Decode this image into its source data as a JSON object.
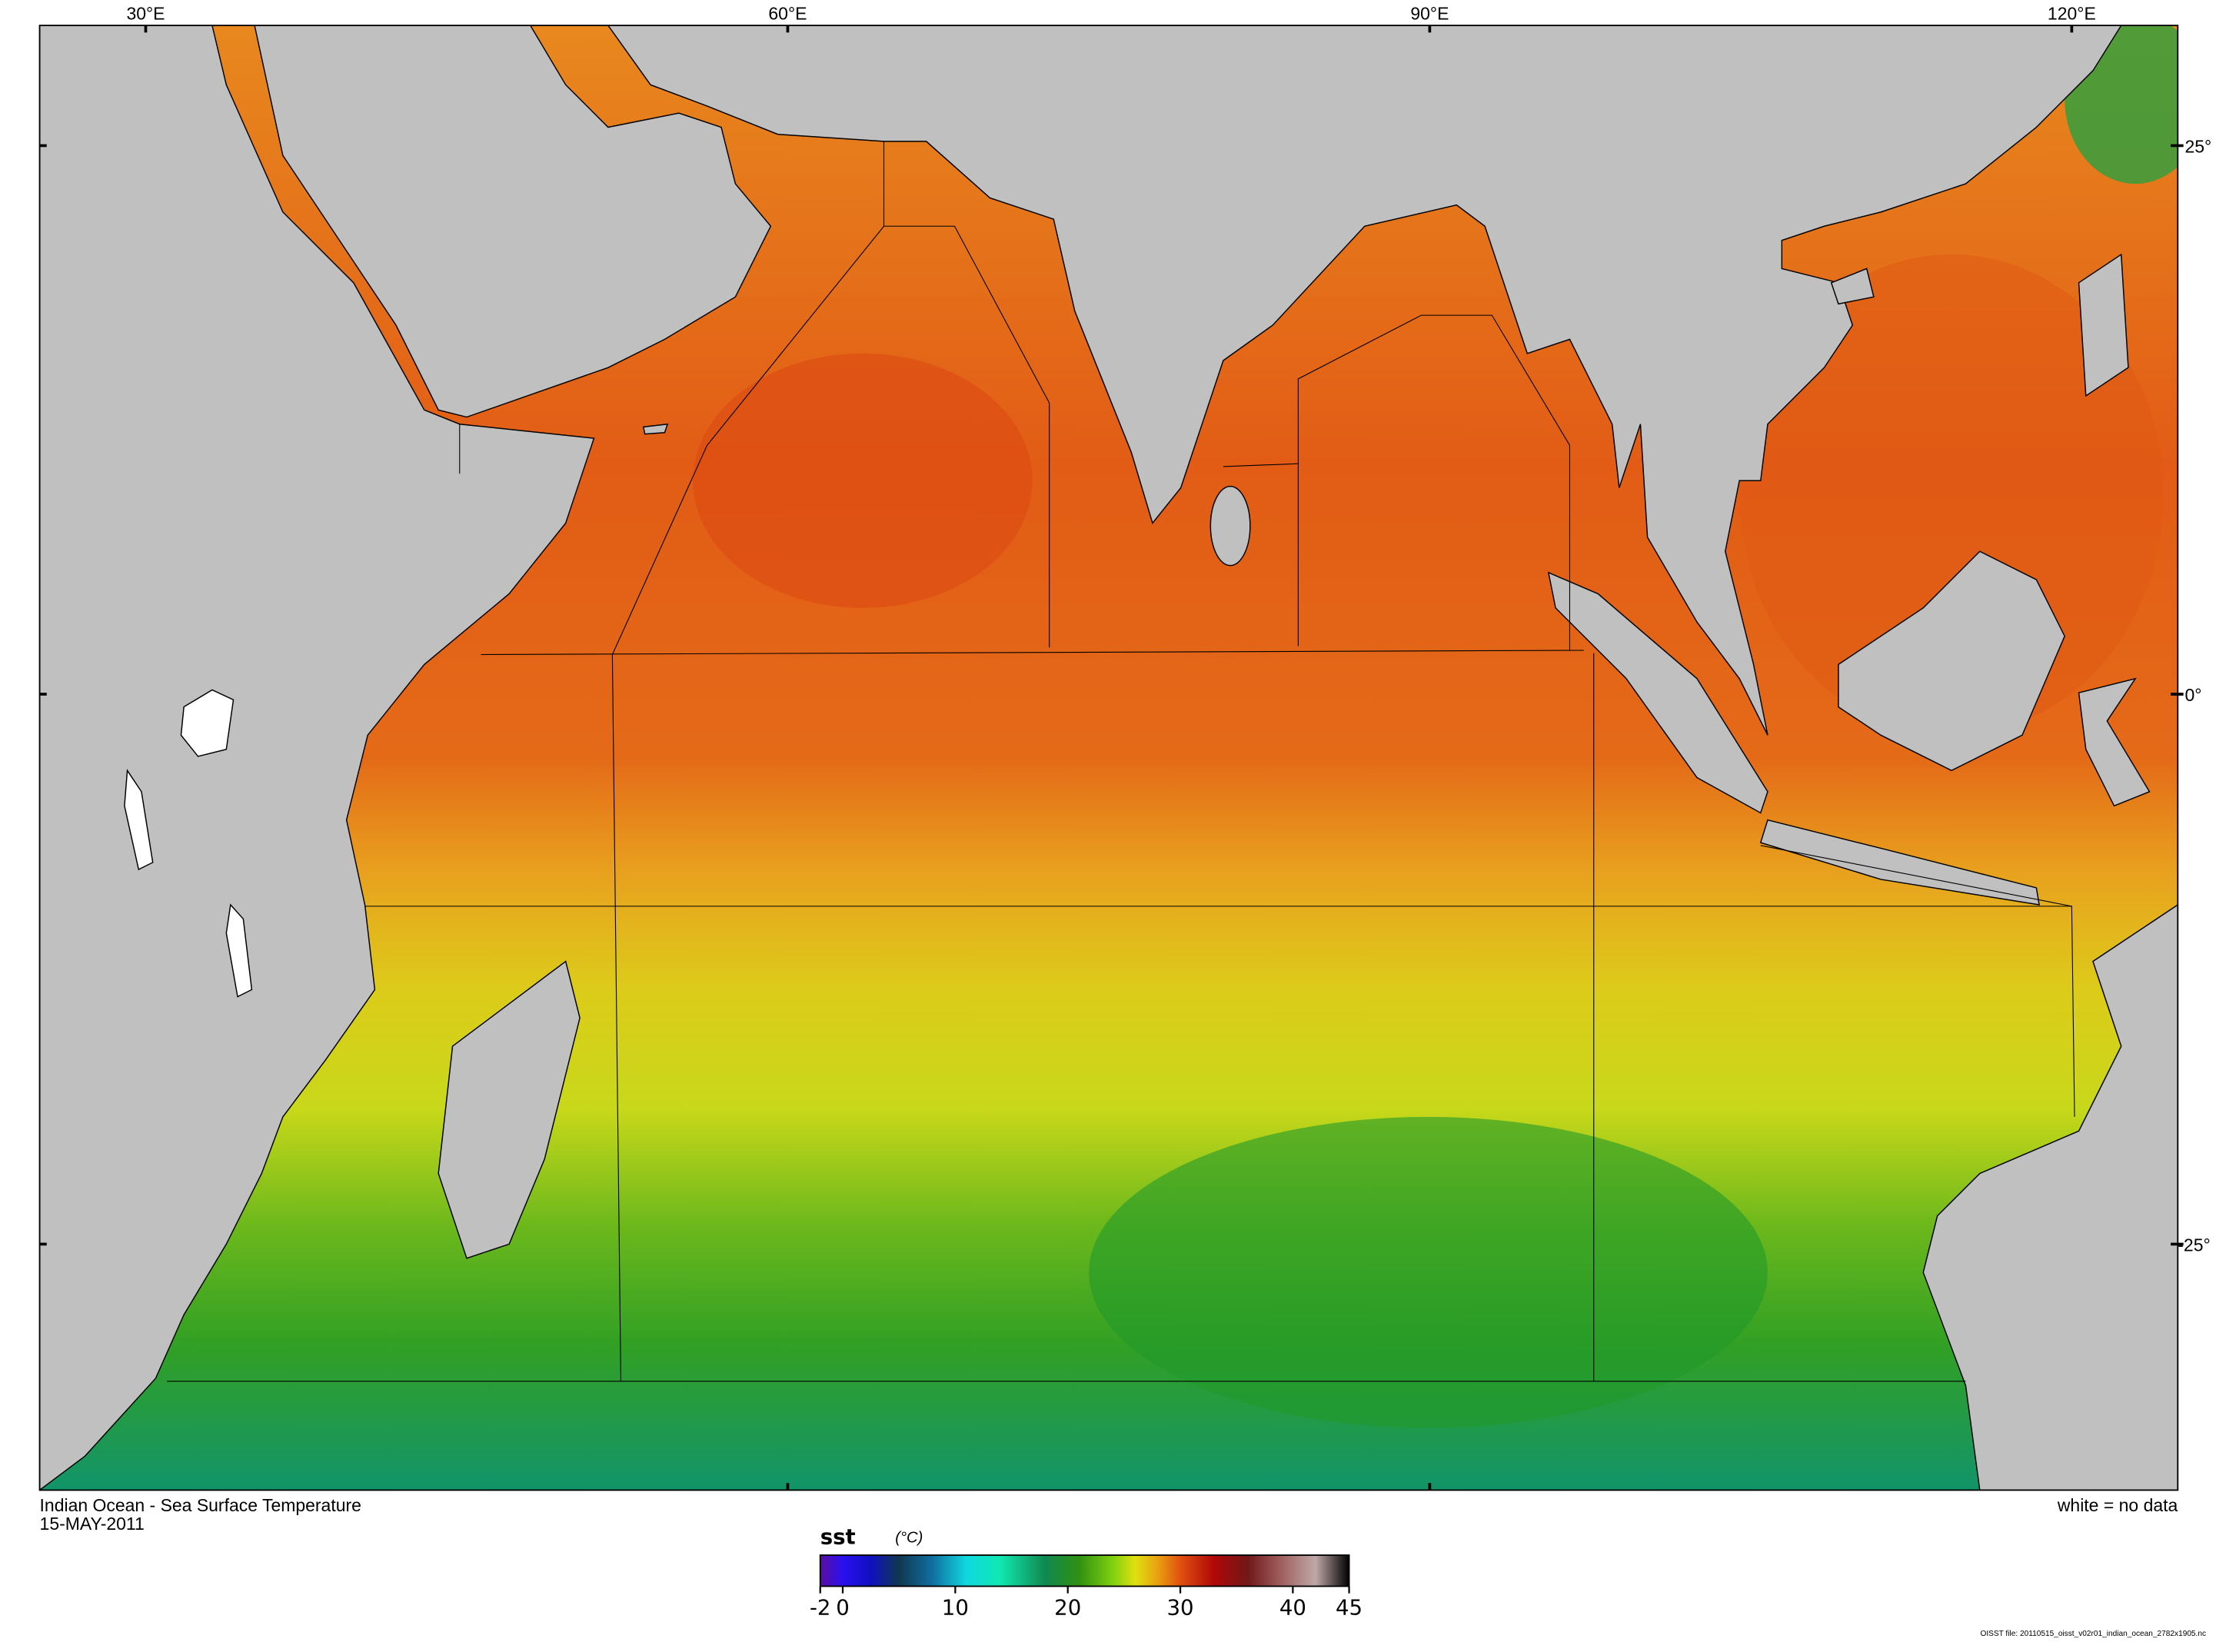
{
  "map": {
    "title": "Indian Ocean - Sea Surface Temperature",
    "date": "15-MAY-2011",
    "no_data_note": "white = no data",
    "file_note": "OISST file: 20110515_oisst_v02r01_indian_ocean_2782x1905.nc",
    "lon_labels": [
      "30°E",
      "60°E",
      "90°E",
      "120°E"
    ],
    "lat_labels": [
      "25°",
      "0°",
      "-25°"
    ],
    "land_color": "#c0c0c0",
    "no_data_color": "#ffffff"
  },
  "colorbar": {
    "variable": "sst",
    "units": "(°C)",
    "min": -2,
    "max": 45,
    "ticks": [
      -2,
      0,
      10,
      20,
      30,
      40,
      45
    ],
    "tick_labels": [
      "-2",
      "0",
      "10",
      "20",
      "30",
      "40",
      "45"
    ],
    "colors": [
      {
        "value": -2,
        "color": "#5a0fa0"
      },
      {
        "value": 0,
        "color": "#2a10f0"
      },
      {
        "value": 2.5,
        "color": "#1010c0"
      },
      {
        "value": 5,
        "color": "#103850"
      },
      {
        "value": 8,
        "color": "#1070a0"
      },
      {
        "value": 11,
        "color": "#10d8e0"
      },
      {
        "value": 14,
        "color": "#10e8b0"
      },
      {
        "value": 18,
        "color": "#108850"
      },
      {
        "value": 21,
        "color": "#309010"
      },
      {
        "value": 24,
        "color": "#80d010"
      },
      {
        "value": 26,
        "color": "#e0e010"
      },
      {
        "value": 28,
        "color": "#e8a010"
      },
      {
        "value": 30,
        "color": "#e05010"
      },
      {
        "value": 33,
        "color": "#b00808"
      },
      {
        "value": 36,
        "color": "#701818"
      },
      {
        "value": 39,
        "color": "#a06060"
      },
      {
        "value": 42,
        "color": "#c0a8a8"
      },
      {
        "value": 45,
        "color": "#000000"
      }
    ]
  }
}
